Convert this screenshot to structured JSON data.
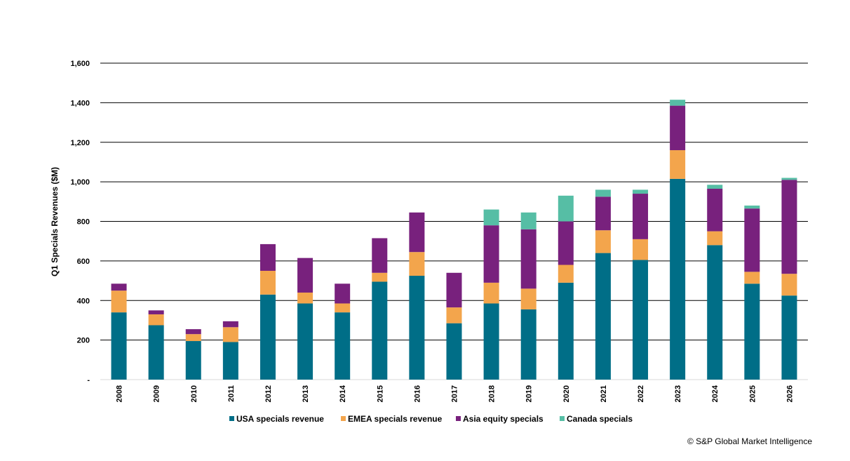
{
  "chart_data": {
    "type": "bar",
    "stacked": true,
    "title": "",
    "xlabel": "",
    "ylabel": "Q1 Specials Revenues ($M)",
    "ylim": [
      0,
      1600
    ],
    "yticks": [
      0,
      200,
      400,
      600,
      800,
      1000,
      1200,
      1400,
      1600
    ],
    "ytick_labels": [
      "-",
      "200",
      "400",
      "600",
      "800",
      "1,000",
      "1,200",
      "1,400",
      "1,600"
    ],
    "grid": true,
    "legend_position": "bottom",
    "categories": [
      "2008",
      "2009",
      "2010",
      "2011",
      "2012",
      "2013",
      "2014",
      "2015",
      "2016",
      "2017",
      "2018",
      "2019",
      "2020",
      "2021",
      "2022",
      "2023",
      "2024",
      "2025",
      "2026"
    ],
    "series": [
      {
        "name": "USA specials revenue",
        "color": "#006E87",
        "values": [
          340,
          275,
          195,
          190,
          430,
          385,
          340,
          495,
          525,
          285,
          385,
          355,
          490,
          640,
          605,
          1015,
          680,
          485,
          425
        ]
      },
      {
        "name": "EMEA specials revenue",
        "color": "#F3A54C",
        "values": [
          110,
          55,
          35,
          75,
          120,
          55,
          45,
          45,
          120,
          80,
          105,
          105,
          90,
          115,
          105,
          145,
          70,
          60,
          110
        ]
      },
      {
        "name": "Asia equity specials",
        "color": "#78217D",
        "values": [
          35,
          20,
          25,
          30,
          135,
          175,
          100,
          175,
          200,
          175,
          290,
          300,
          220,
          170,
          230,
          225,
          215,
          320,
          475
        ]
      },
      {
        "name": "Canada specials",
        "color": "#56BEA5",
        "values": [
          0,
          0,
          0,
          0,
          0,
          0,
          0,
          0,
          0,
          0,
          80,
          85,
          130,
          35,
          20,
          30,
          20,
          15,
          10
        ]
      }
    ]
  },
  "footer": {
    "copyright": "© S&P Global Market Intelligence"
  }
}
